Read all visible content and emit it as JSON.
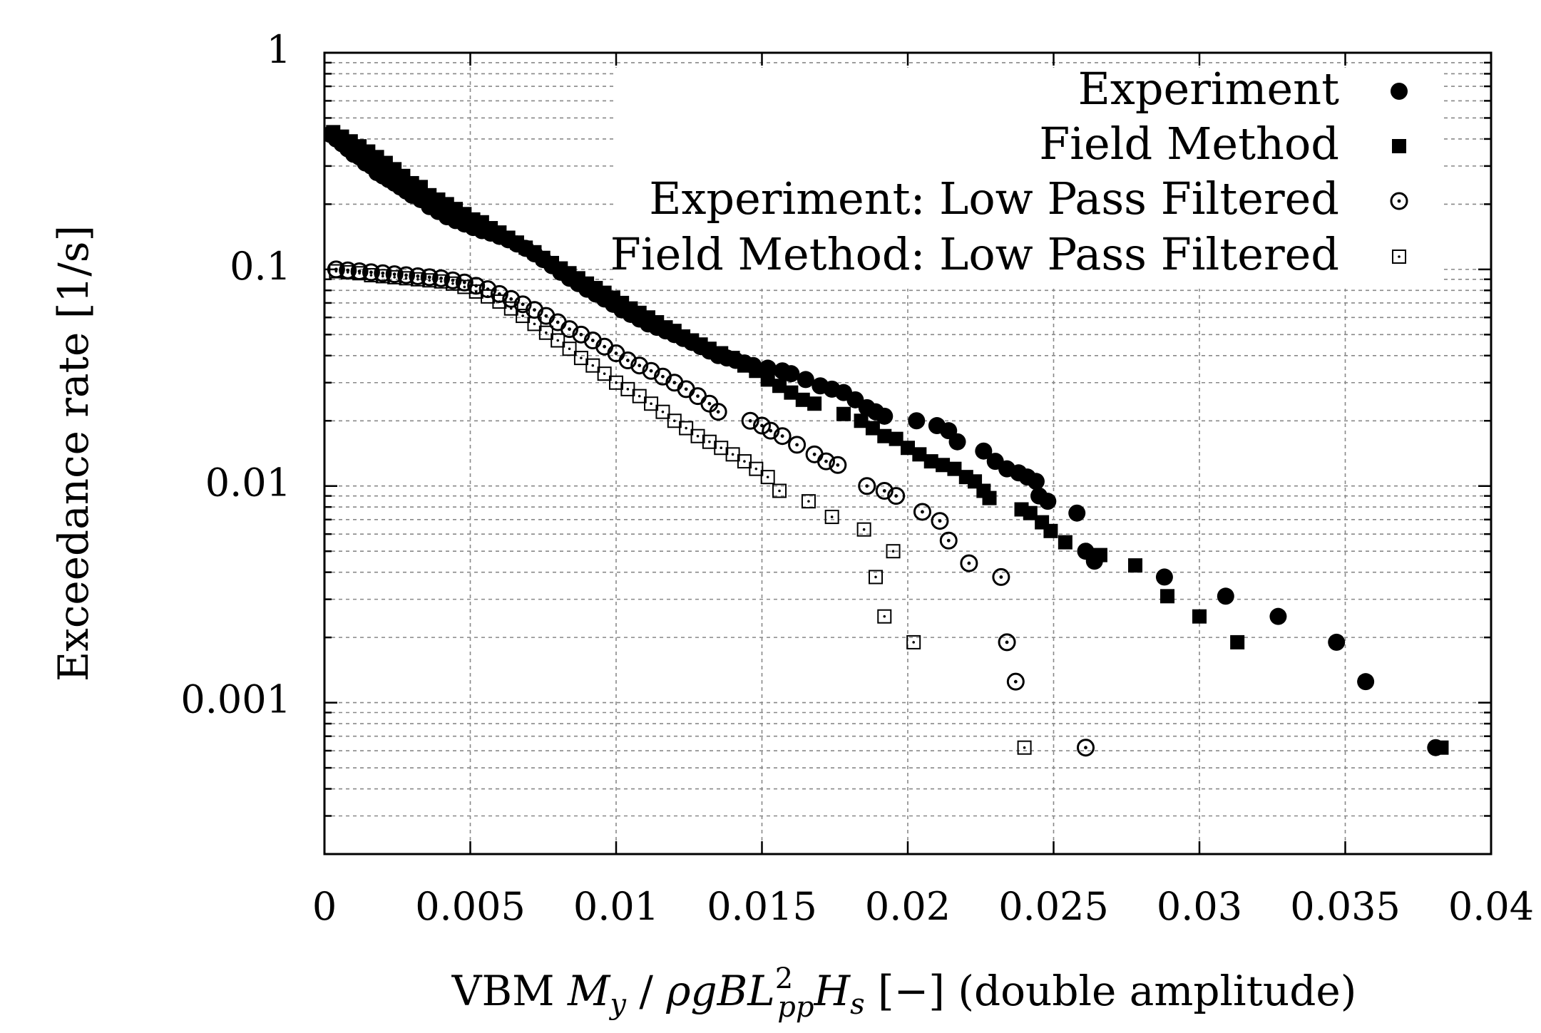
{
  "chart_data": {
    "type": "scatter",
    "title": "",
    "xlabel_parts": {
      "prefix": "VBM ",
      "moment": "M",
      "moment_sub": "y",
      "slash": " / ",
      "rho_g_b": "ρgBL",
      "sup": "2",
      "sub": "pp",
      "hs": "H",
      "hs_sub": "s",
      "suffix": " [−] (double amplitude)"
    },
    "ylabel": "Exceedance rate [1/s]",
    "xlim": [
      0,
      0.04
    ],
    "ylim": [
      0.0002,
      1
    ],
    "yscale": "log",
    "grid": true,
    "legend_position": "top-right",
    "x_ticks": [
      {
        "value": 0,
        "label": "0"
      },
      {
        "value": 0.005,
        "label": "0.005"
      },
      {
        "value": 0.01,
        "label": "0.01"
      },
      {
        "value": 0.015,
        "label": "0.015"
      },
      {
        "value": 0.02,
        "label": "0.02"
      },
      {
        "value": 0.025,
        "label": "0.025"
      },
      {
        "value": 0.03,
        "label": "0.03"
      },
      {
        "value": 0.035,
        "label": "0.035"
      },
      {
        "value": 0.04,
        "label": "0.04"
      }
    ],
    "y_ticks": [
      {
        "value": 1,
        "label": "1"
      },
      {
        "value": 0.1,
        "label": "0.1"
      },
      {
        "value": 0.01,
        "label": "0.01"
      },
      {
        "value": 0.001,
        "label": "0.001"
      }
    ],
    "series": [
      {
        "name": "Experiment",
        "marker": "filled-circle",
        "points": [
          [
            0.0002,
            0.42
          ],
          [
            0.0004,
            0.4
          ],
          [
            0.0006,
            0.38
          ],
          [
            0.0008,
            0.36
          ],
          [
            0.001,
            0.34
          ],
          [
            0.0012,
            0.33
          ],
          [
            0.0014,
            0.31
          ],
          [
            0.0016,
            0.3
          ],
          [
            0.0018,
            0.28
          ],
          [
            0.002,
            0.27
          ],
          [
            0.0022,
            0.26
          ],
          [
            0.0024,
            0.25
          ],
          [
            0.0026,
            0.24
          ],
          [
            0.0028,
            0.23
          ],
          [
            0.003,
            0.22
          ],
          [
            0.0033,
            0.21
          ],
          [
            0.0036,
            0.195
          ],
          [
            0.0039,
            0.185
          ],
          [
            0.0042,
            0.175
          ],
          [
            0.0045,
            0.168
          ],
          [
            0.0048,
            0.162
          ],
          [
            0.0051,
            0.156
          ],
          [
            0.0054,
            0.151
          ],
          [
            0.0057,
            0.147
          ],
          [
            0.006,
            0.142
          ],
          [
            0.0063,
            0.137
          ],
          [
            0.0066,
            0.131
          ],
          [
            0.0069,
            0.125
          ],
          [
            0.0072,
            0.118
          ],
          [
            0.0075,
            0.111
          ],
          [
            0.0078,
            0.104
          ],
          [
            0.0081,
            0.097
          ],
          [
            0.0084,
            0.091
          ],
          [
            0.0087,
            0.086
          ],
          [
            0.009,
            0.081
          ],
          [
            0.0093,
            0.077
          ],
          [
            0.0096,
            0.073
          ],
          [
            0.0099,
            0.069
          ],
          [
            0.0102,
            0.065
          ],
          [
            0.0105,
            0.062
          ],
          [
            0.0108,
            0.059
          ],
          [
            0.0111,
            0.056
          ],
          [
            0.0114,
            0.054
          ],
          [
            0.0117,
            0.052
          ],
          [
            0.012,
            0.05
          ],
          [
            0.0123,
            0.048
          ],
          [
            0.0126,
            0.046
          ],
          [
            0.0129,
            0.044
          ],
          [
            0.0132,
            0.042
          ],
          [
            0.0135,
            0.04
          ],
          [
            0.0138,
            0.039
          ],
          [
            0.0141,
            0.038
          ],
          [
            0.0144,
            0.037
          ],
          [
            0.0147,
            0.036
          ],
          [
            0.0152,
            0.035
          ],
          [
            0.0157,
            0.034
          ],
          [
            0.016,
            0.033
          ],
          [
            0.0165,
            0.031
          ],
          [
            0.017,
            0.029
          ],
          [
            0.0174,
            0.028
          ],
          [
            0.0178,
            0.027
          ],
          [
            0.0182,
            0.025
          ],
          [
            0.0186,
            0.023
          ],
          [
            0.0189,
            0.022
          ],
          [
            0.0192,
            0.021
          ],
          [
            0.0203,
            0.02
          ],
          [
            0.021,
            0.019
          ],
          [
            0.0214,
            0.018
          ],
          [
            0.0217,
            0.016
          ],
          [
            0.0226,
            0.0145
          ],
          [
            0.023,
            0.013
          ],
          [
            0.0234,
            0.012
          ],
          [
            0.0238,
            0.0115
          ],
          [
            0.0241,
            0.011
          ],
          [
            0.0244,
            0.0105
          ],
          [
            0.0245,
            0.009
          ],
          [
            0.0248,
            0.0085
          ],
          [
            0.0258,
            0.0075
          ],
          [
            0.0261,
            0.005
          ],
          [
            0.0264,
            0.0045
          ],
          [
            0.0288,
            0.0038
          ],
          [
            0.0309,
            0.0031
          ],
          [
            0.0327,
            0.0025
          ],
          [
            0.0347,
            0.0019
          ],
          [
            0.0357,
            0.00125
          ],
          [
            0.0381,
            0.00062
          ]
        ]
      },
      {
        "name": "Field Method",
        "marker": "filled-square",
        "points": [
          [
            0.0003,
            0.43
          ],
          [
            0.0006,
            0.41
          ],
          [
            0.0009,
            0.39
          ],
          [
            0.0012,
            0.37
          ],
          [
            0.0015,
            0.35
          ],
          [
            0.0018,
            0.33
          ],
          [
            0.0021,
            0.31
          ],
          [
            0.0024,
            0.29
          ],
          [
            0.0027,
            0.27
          ],
          [
            0.003,
            0.25
          ],
          [
            0.0033,
            0.24
          ],
          [
            0.0036,
            0.22
          ],
          [
            0.0039,
            0.21
          ],
          [
            0.0042,
            0.2
          ],
          [
            0.0045,
            0.19
          ],
          [
            0.0048,
            0.18
          ],
          [
            0.0051,
            0.17
          ],
          [
            0.0054,
            0.165
          ],
          [
            0.0057,
            0.155
          ],
          [
            0.006,
            0.148
          ],
          [
            0.0063,
            0.14
          ],
          [
            0.0066,
            0.133
          ],
          [
            0.0069,
            0.126
          ],
          [
            0.0072,
            0.12
          ],
          [
            0.0075,
            0.113
          ],
          [
            0.0078,
            0.107
          ],
          [
            0.0081,
            0.101
          ],
          [
            0.0084,
            0.096
          ],
          [
            0.0087,
            0.091
          ],
          [
            0.009,
            0.086
          ],
          [
            0.0093,
            0.082
          ],
          [
            0.0096,
            0.078
          ],
          [
            0.0099,
            0.074
          ],
          [
            0.0102,
            0.07
          ],
          [
            0.0105,
            0.066
          ],
          [
            0.0108,
            0.063
          ],
          [
            0.0111,
            0.06
          ],
          [
            0.0114,
            0.057
          ],
          [
            0.0117,
            0.054
          ],
          [
            0.012,
            0.052
          ],
          [
            0.0123,
            0.049
          ],
          [
            0.0126,
            0.047
          ],
          [
            0.0129,
            0.045
          ],
          [
            0.0132,
            0.043
          ],
          [
            0.0136,
            0.041
          ],
          [
            0.014,
            0.039
          ],
          [
            0.0144,
            0.036
          ],
          [
            0.0148,
            0.034
          ],
          [
            0.0152,
            0.031
          ],
          [
            0.0156,
            0.029
          ],
          [
            0.016,
            0.027
          ],
          [
            0.0164,
            0.025
          ],
          [
            0.0168,
            0.024
          ],
          [
            0.0178,
            0.0215
          ],
          [
            0.0184,
            0.02
          ],
          [
            0.0188,
            0.0185
          ],
          [
            0.0192,
            0.017
          ],
          [
            0.0196,
            0.0165
          ],
          [
            0.02,
            0.015
          ],
          [
            0.0204,
            0.014
          ],
          [
            0.0208,
            0.013
          ],
          [
            0.0212,
            0.0125
          ],
          [
            0.0216,
            0.012
          ],
          [
            0.022,
            0.011
          ],
          [
            0.0223,
            0.0105
          ],
          [
            0.0226,
            0.0095
          ],
          [
            0.0228,
            0.0088
          ],
          [
            0.0239,
            0.0078
          ],
          [
            0.0242,
            0.0075
          ],
          [
            0.0246,
            0.0068
          ],
          [
            0.0249,
            0.0062
          ],
          [
            0.0254,
            0.0055
          ],
          [
            0.0266,
            0.0048
          ],
          [
            0.0278,
            0.0043
          ],
          [
            0.0289,
            0.0031
          ],
          [
            0.03,
            0.0025
          ],
          [
            0.0313,
            0.0019
          ],
          [
            0.0383,
            0.00062
          ]
        ]
      },
      {
        "name": "Experiment: Low Pass Filtered",
        "marker": "open-circle-dot",
        "points": [
          [
            0.0004,
            0.1
          ],
          [
            0.0008,
            0.099
          ],
          [
            0.0012,
            0.098
          ],
          [
            0.0016,
            0.097
          ],
          [
            0.002,
            0.096
          ],
          [
            0.0024,
            0.095
          ],
          [
            0.0028,
            0.094
          ],
          [
            0.0032,
            0.093
          ],
          [
            0.0036,
            0.092
          ],
          [
            0.004,
            0.091
          ],
          [
            0.0044,
            0.089
          ],
          [
            0.0048,
            0.087
          ],
          [
            0.0052,
            0.084
          ],
          [
            0.0056,
            0.081
          ],
          [
            0.006,
            0.077
          ],
          [
            0.0064,
            0.073
          ],
          [
            0.0068,
            0.069
          ],
          [
            0.0072,
            0.065
          ],
          [
            0.0076,
            0.061
          ],
          [
            0.008,
            0.057
          ],
          [
            0.0084,
            0.053
          ],
          [
            0.0088,
            0.05
          ],
          [
            0.0092,
            0.047
          ],
          [
            0.0096,
            0.044
          ],
          [
            0.01,
            0.041
          ],
          [
            0.0104,
            0.038
          ],
          [
            0.0108,
            0.036
          ],
          [
            0.0112,
            0.034
          ],
          [
            0.0116,
            0.032
          ],
          [
            0.012,
            0.03
          ],
          [
            0.0124,
            0.028
          ],
          [
            0.0128,
            0.026
          ],
          [
            0.0132,
            0.024
          ],
          [
            0.0135,
            0.022
          ],
          [
            0.0146,
            0.02
          ],
          [
            0.015,
            0.019
          ],
          [
            0.0153,
            0.018
          ],
          [
            0.0157,
            0.017
          ],
          [
            0.0162,
            0.0155
          ],
          [
            0.0168,
            0.014
          ],
          [
            0.0172,
            0.013
          ],
          [
            0.0176,
            0.0125
          ],
          [
            0.0186,
            0.01
          ],
          [
            0.0192,
            0.0095
          ],
          [
            0.0196,
            0.009
          ],
          [
            0.0205,
            0.0076
          ],
          [
            0.0211,
            0.0069
          ],
          [
            0.0214,
            0.0056
          ],
          [
            0.0221,
            0.0044
          ],
          [
            0.0232,
            0.0038
          ],
          [
            0.0234,
            0.0019
          ],
          [
            0.0237,
            0.00125
          ],
          [
            0.0261,
            0.00062
          ]
        ]
      },
      {
        "name": "Field Method: Low Pass Filtered",
        "marker": "open-square-dot",
        "points": [
          [
            0.0004,
            0.098
          ],
          [
            0.0008,
            0.097
          ],
          [
            0.0012,
            0.096
          ],
          [
            0.0016,
            0.094
          ],
          [
            0.002,
            0.093
          ],
          [
            0.0024,
            0.092
          ],
          [
            0.0028,
            0.091
          ],
          [
            0.0032,
            0.09
          ],
          [
            0.0036,
            0.089
          ],
          [
            0.004,
            0.088
          ],
          [
            0.0044,
            0.086
          ],
          [
            0.0048,
            0.083
          ],
          [
            0.0052,
            0.079
          ],
          [
            0.0056,
            0.075
          ],
          [
            0.006,
            0.071
          ],
          [
            0.0064,
            0.066
          ],
          [
            0.0068,
            0.061
          ],
          [
            0.0072,
            0.056
          ],
          [
            0.0076,
            0.051
          ],
          [
            0.008,
            0.047
          ],
          [
            0.0084,
            0.043
          ],
          [
            0.0088,
            0.039
          ],
          [
            0.0092,
            0.036
          ],
          [
            0.0096,
            0.033
          ],
          [
            0.01,
            0.03
          ],
          [
            0.0104,
            0.028
          ],
          [
            0.0108,
            0.026
          ],
          [
            0.0112,
            0.024
          ],
          [
            0.0116,
            0.022
          ],
          [
            0.012,
            0.02
          ],
          [
            0.0124,
            0.0185
          ],
          [
            0.0128,
            0.017
          ],
          [
            0.0132,
            0.016
          ],
          [
            0.0136,
            0.015
          ],
          [
            0.014,
            0.014
          ],
          [
            0.0144,
            0.013
          ],
          [
            0.0148,
            0.012
          ],
          [
            0.0152,
            0.011
          ],
          [
            0.0156,
            0.0095
          ],
          [
            0.0166,
            0.0085
          ],
          [
            0.0174,
            0.0072
          ],
          [
            0.0185,
            0.0063
          ],
          [
            0.0195,
            0.005
          ],
          [
            0.0189,
            0.0038
          ],
          [
            0.0192,
            0.0025
          ],
          [
            0.0202,
            0.0019
          ],
          [
            0.024,
            0.00062
          ]
        ]
      }
    ]
  }
}
